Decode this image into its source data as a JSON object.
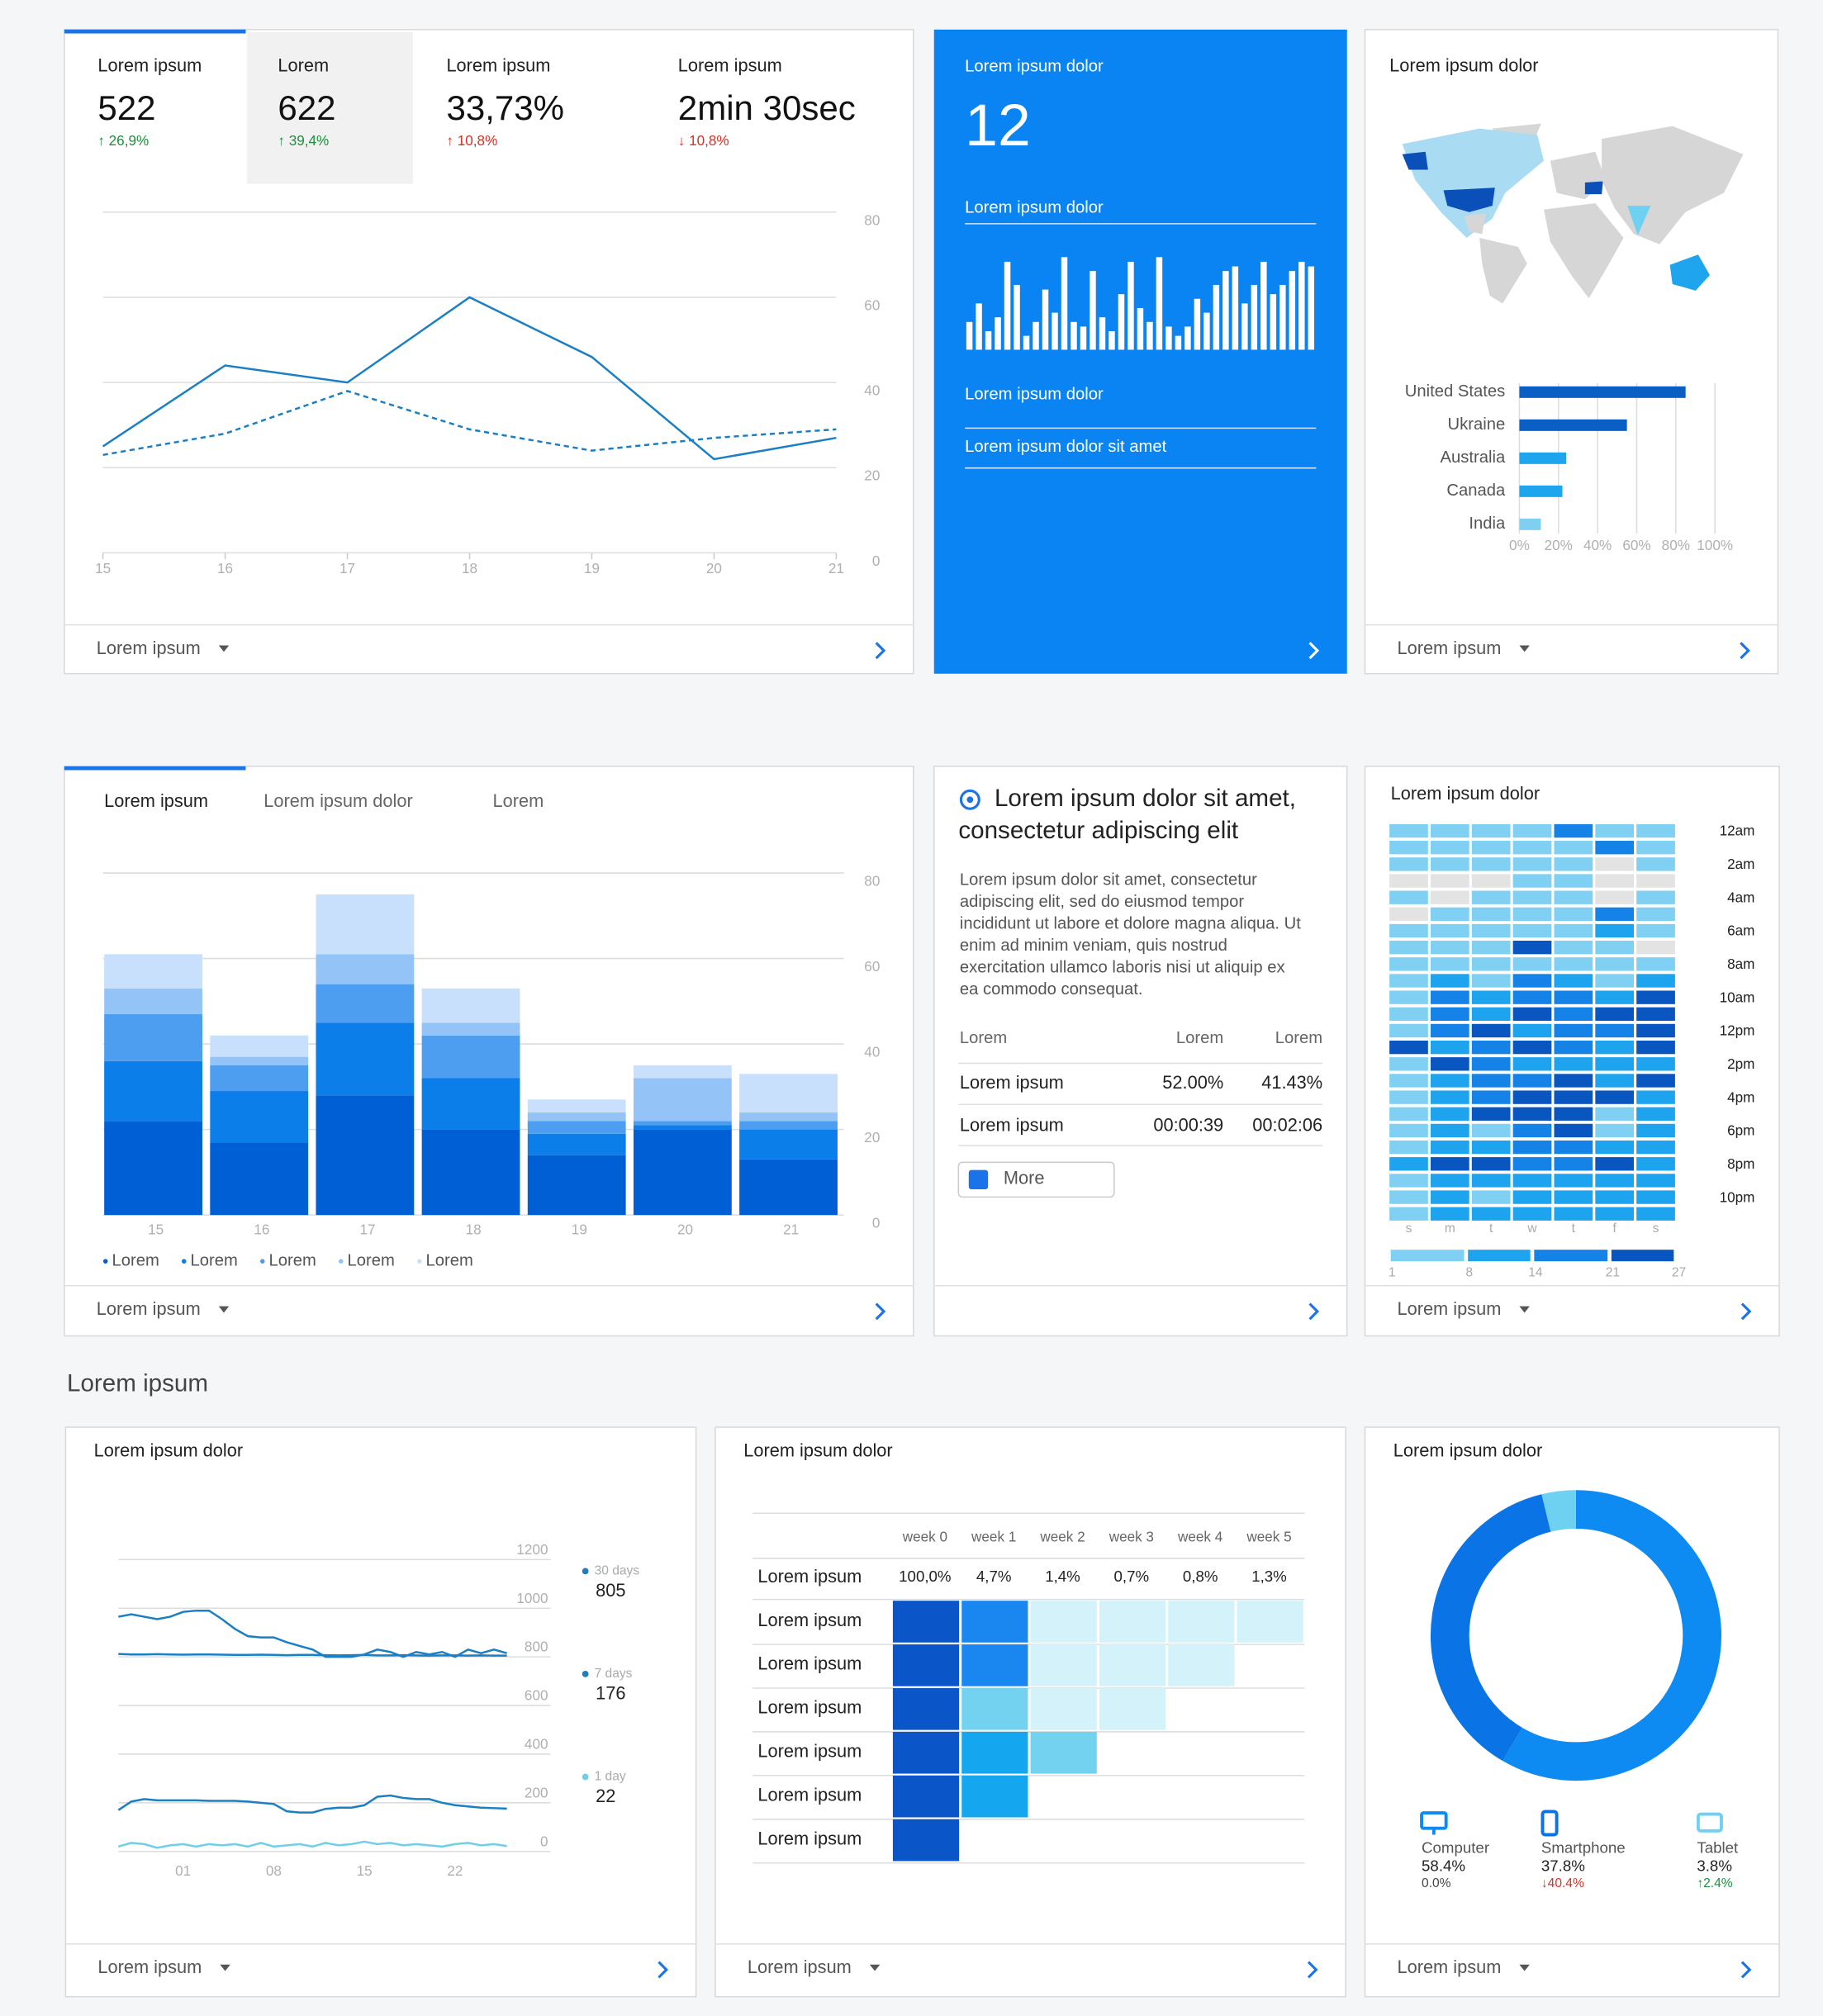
{
  "overview": {
    "kpis": [
      {
        "label": "Lorem ipsum",
        "value": "522",
        "change": "↑ 26,9%",
        "color": "#1e8e3e"
      },
      {
        "label": "Lorem",
        "value": "622",
        "change": "↑ 39,4%",
        "color": "#1e8e3e"
      },
      {
        "label": "Lorem ipsum",
        "value": "33,73%",
        "change": "↑ 10,8%",
        "color": "#d93025"
      },
      {
        "label": "Lorem ipsum",
        "value": "2min 30sec",
        "change": "↓ 10,8%",
        "color": "#d93025"
      }
    ],
    "chart_data": {
      "type": "line",
      "x": [
        15,
        16,
        17,
        18,
        19,
        20,
        21
      ],
      "xlim": [
        15,
        21
      ],
      "xticks": [
        15,
        16,
        17,
        18,
        19,
        20,
        21
      ],
      "ylim": [
        0,
        80
      ],
      "yticks": [
        0,
        20,
        40,
        60,
        80
      ],
      "grid": true,
      "series": [
        {
          "color": "#1b7fc4",
          "style": "solid",
          "values": [
            25,
            44,
            40,
            60,
            46,
            22,
            27
          ]
        },
        {
          "color": "#1b7fc4",
          "style": "dashed",
          "values": [
            23,
            28,
            38,
            29,
            24,
            27,
            29
          ]
        }
      ]
    },
    "footer": "Lorem ipsum"
  },
  "highlight": {
    "title": "Lorem ipsum dolor",
    "value": "12",
    "subtitle": "Lorem ipsum dolor",
    "background": "#0b84f3",
    "chart_data": {
      "type": "bar",
      "color": "#ffffff",
      "values": [
        30,
        50,
        20,
        35,
        95,
        70,
        15,
        30,
        65,
        40,
        100,
        30,
        25,
        85,
        35,
        20,
        60,
        95,
        45,
        30,
        100,
        25,
        15,
        25,
        55,
        40,
        70,
        85,
        90,
        50,
        70,
        95,
        60,
        70,
        85,
        95,
        90
      ]
    },
    "links": [
      "Lorem ipsum dolor",
      "Lorem ipsum dolor sit amet"
    ]
  },
  "geo": {
    "title": "Lorem ipsum dolor",
    "chart_data": {
      "type": "hbar",
      "categories": [
        "United States",
        "Ukraine",
        "Australia",
        "Canada",
        "India"
      ],
      "values": [
        85,
        55,
        24,
        22,
        11
      ],
      "colors": [
        "#0a5fc4",
        "#0a5fc4",
        "#1ea5ee",
        "#1ea5ee",
        "#7fd0f0"
      ],
      "xlim": [
        0,
        100
      ],
      "xticks": [
        {
          "value": 0,
          "label": "0%"
        },
        {
          "value": 20,
          "label": "20%"
        },
        {
          "value": 40,
          "label": "40%"
        },
        {
          "value": 60,
          "label": "60%"
        },
        {
          "value": 80,
          "label": "80%"
        },
        {
          "value": 100,
          "label": "100%"
        }
      ],
      "grid": true
    },
    "footer": "Lorem ipsum"
  },
  "breakdown": {
    "tabs": [
      "Lorem ipsum",
      "Lorem ipsum dolor",
      "Lorem"
    ],
    "chart_data": {
      "type": "stacked_bar",
      "categories": [
        "15",
        "16",
        "17",
        "18",
        "19",
        "20",
        "21"
      ],
      "ylim": [
        0,
        80
      ],
      "yticks": [
        0,
        20,
        40,
        60,
        80
      ],
      "grid": true,
      "series": [
        {
          "name": "Lorem",
          "color": "#005fd4",
          "values": [
            22,
            17,
            28,
            20,
            14,
            20,
            13
          ]
        },
        {
          "name": "Lorem",
          "color": "#0b7eea",
          "values": [
            14,
            12,
            17,
            12,
            5,
            1,
            7
          ]
        },
        {
          "name": "Lorem",
          "color": "#4d9ef0",
          "values": [
            11,
            6,
            9,
            10,
            3,
            1,
            2
          ]
        },
        {
          "name": "Lorem",
          "color": "#94c4f7",
          "values": [
            6,
            2,
            7,
            3,
            2,
            10,
            2
          ]
        },
        {
          "name": "Lorem",
          "color": "#c8e0fb",
          "values": [
            8,
            5,
            14,
            8,
            3,
            3,
            9
          ]
        }
      ]
    },
    "footer": "Lorem ipsum"
  },
  "article": {
    "title_lines": [
      "Lorem ipsum dolor sit amet,",
      "consectetur adipiscing elit"
    ],
    "paragraph_lines": [
      "Lorem ipsum dolor sit amet, consectetur",
      "adipiscing elit, sed do eiusmod tempor",
      "incididunt ut labore et dolore magna aliqua. Ut",
      "enim ad minim veniam, quis nostrud",
      "exercitation ullamco laboris nisi ut aliquip ex",
      "ea commodo consequat."
    ],
    "table": {
      "header": [
        "Lorem",
        "Lorem",
        "Lorem"
      ],
      "rows": [
        [
          "Lorem ipsum",
          "52.00%",
          "41.43%"
        ],
        [
          "Lorem ipsum",
          "00:00:39",
          "00:02:06"
        ]
      ]
    },
    "button": "More"
  },
  "heatmap": {
    "title": "Lorem ipsum dolor",
    "chart_data": {
      "type": "heatmap",
      "columns": [
        "s",
        "m",
        "t",
        "w",
        "t",
        "f",
        "s"
      ],
      "row_labels": [
        "12am",
        null,
        "2am",
        null,
        "4am",
        null,
        "6am",
        null,
        "8am",
        null,
        "10am",
        null,
        "12pm",
        null,
        "2pm",
        null,
        "4pm",
        null,
        "6pm",
        null,
        "8pm",
        null,
        "10pm",
        null
      ],
      "values": [
        [
          3,
          3,
          3,
          3,
          17,
          3,
          3
        ],
        [
          3,
          3,
          3,
          3,
          3,
          17,
          3
        ],
        [
          3,
          3,
          3,
          3,
          3,
          null,
          3
        ],
        [
          null,
          null,
          null,
          3,
          3,
          null,
          null
        ],
        [
          3,
          null,
          3,
          3,
          3,
          null,
          3
        ],
        [
          null,
          3,
          3,
          3,
          3,
          17,
          3
        ],
        [
          3,
          3,
          3,
          3,
          3,
          10,
          3
        ],
        [
          3,
          3,
          3,
          27,
          3,
          3,
          null
        ],
        [
          3,
          3,
          3,
          3,
          3,
          3,
          3
        ],
        [
          3,
          10,
          3,
          17,
          10,
          3,
          10
        ],
        [
          3,
          17,
          10,
          17,
          17,
          10,
          24
        ],
        [
          3,
          17,
          10,
          24,
          17,
          24,
          24
        ],
        [
          3,
          17,
          24,
          10,
          17,
          17,
          27
        ],
        [
          27,
          10,
          17,
          24,
          17,
          10,
          24
        ],
        [
          3,
          24,
          17,
          10,
          10,
          10,
          10
        ],
        [
          3,
          10,
          17,
          17,
          24,
          10,
          24
        ],
        [
          3,
          10,
          17,
          24,
          24,
          24,
          10
        ],
        [
          3,
          10,
          24,
          24,
          24,
          3,
          10
        ],
        [
          3,
          10,
          3,
          17,
          27,
          3,
          10
        ],
        [
          3,
          10,
          10,
          17,
          17,
          10,
          10
        ],
        [
          10,
          24,
          24,
          17,
          17,
          24,
          10
        ],
        [
          3,
          10,
          10,
          10,
          10,
          10,
          10
        ],
        [
          3,
          10,
          3,
          10,
          10,
          10,
          10
        ],
        [
          3,
          10,
          10,
          10,
          10,
          10,
          10
        ]
      ],
      "colors": [
        "#7fd0f2",
        "#1ea3ee",
        "#1482e6",
        "#0a56c0"
      ],
      "null_color": "#e3e3e3",
      "legend_ticks": [
        1,
        8,
        14,
        21,
        27
      ]
    },
    "footer": "Lorem ipsum"
  },
  "section_title": "Lorem ipsum",
  "trend": {
    "title": "Lorem ipsum dolor",
    "chart_data": {
      "type": "line",
      "categories": [
        null,
        null,
        null,
        null,
        null,
        "01",
        null,
        null,
        null,
        null,
        null,
        null,
        "08",
        null,
        null,
        null,
        null,
        null,
        null,
        "15",
        null,
        null,
        null,
        null,
        null,
        null,
        "22",
        null,
        null,
        null,
        null
      ],
      "ylim": [
        0,
        1200
      ],
      "yticks": [
        0,
        200,
        400,
        600,
        800,
        1000,
        1200
      ],
      "grid": true,
      "series": [
        {
          "color": "#1b7fc4",
          "values": [
            965,
            975,
            965,
            955,
            965,
            985,
            990,
            990,
            955,
            915,
            885,
            880,
            880,
            860,
            845,
            830,
            800,
            800,
            800,
            810,
            830,
            820,
            800,
            820,
            810,
            820,
            800,
            830,
            815,
            830,
            815
          ]
        },
        {
          "name": "30 days",
          "summary": 805,
          "color": "#1b7fc4",
          "values": [
            812,
            810,
            810,
            811,
            810,
            809,
            810,
            810,
            809,
            808,
            808,
            809,
            808,
            807,
            808,
            808,
            807,
            806,
            807,
            808,
            806,
            806,
            807,
            806,
            805,
            806,
            806,
            805,
            806,
            805,
            805
          ]
        },
        {
          "name": "7 days",
          "summary": 176,
          "color": "#1b7fc4",
          "values": [
            170,
            205,
            215,
            210,
            210,
            210,
            210,
            208,
            208,
            208,
            205,
            200,
            195,
            165,
            160,
            160,
            175,
            180,
            180,
            190,
            225,
            230,
            220,
            215,
            215,
            200,
            190,
            185,
            180,
            178,
            176
          ]
        },
        {
          "name": "1 day",
          "summary": 22,
          "color": "#6fcfe8",
          "values": [
            20,
            35,
            30,
            15,
            25,
            30,
            20,
            30,
            25,
            30,
            20,
            35,
            20,
            25,
            30,
            20,
            35,
            25,
            30,
            40,
            30,
            35,
            25,
            30,
            25,
            20,
            30,
            35,
            25,
            30,
            22
          ]
        }
      ]
    },
    "footer": "Lorem ipsum"
  },
  "cohort": {
    "title": "Lorem ipsum dolor",
    "chart_data": {
      "type": "cohort",
      "columns": [
        "week 0",
        "week 1",
        "week 2",
        "week 3",
        "week 4",
        "week 5"
      ],
      "summary_label": "Lorem ipsum",
      "summary": [
        "100,0%",
        "4,7%",
        "1,4%",
        "0,7%",
        "0,8%",
        "1,3%"
      ],
      "row_labels": [
        "Lorem ipsum",
        "Lorem ipsum",
        "Lorem ipsum",
        "Lorem ipsum",
        "Lorem ipsum",
        "Lorem ipsum"
      ],
      "values": [
        [
          100,
          6,
          1,
          1,
          1,
          1
        ],
        [
          100,
          6,
          1,
          1,
          1
        ],
        [
          100,
          3,
          1,
          1
        ],
        [
          100,
          5,
          3
        ],
        [
          100,
          5
        ],
        [
          100
        ]
      ]
    },
    "footer": "Lorem ipsum"
  },
  "devices": {
    "title": "Lorem ipsum dolor",
    "chart_data": {
      "type": "donut",
      "categories": [
        "Computer",
        "Smartphone",
        "Tablet"
      ],
      "values": [
        58.4,
        37.8,
        3.8
      ],
      "value_labels": [
        "58.4%",
        "37.8%",
        "3.8%"
      ],
      "changes": [
        "0.0%",
        "↓40.4%",
        "↑2.4%"
      ],
      "change_colors": [
        "#444444",
        "#d93025",
        "#1e8e3e"
      ],
      "colors": [
        "#0d8bf2",
        "#0a74e6",
        "#6fd1f2"
      ]
    },
    "footer": "Lorem ipsum"
  }
}
